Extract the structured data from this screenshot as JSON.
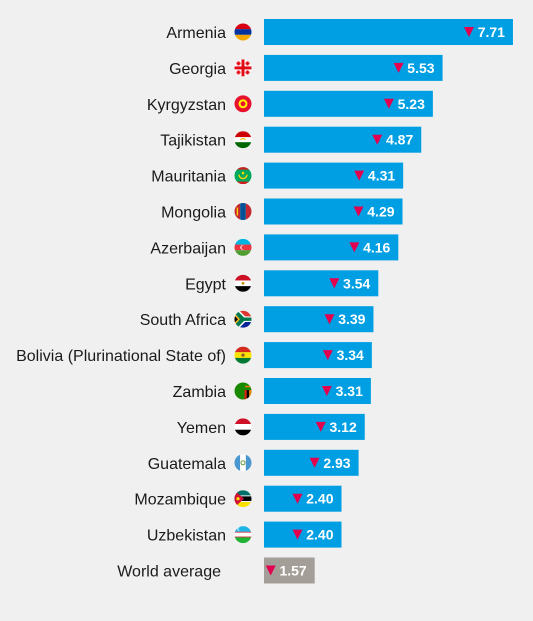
{
  "chart_data": {
    "type": "bar",
    "orientation": "horizontal",
    "title": "",
    "xlabel": "",
    "ylabel": "",
    "xlim": [
      0,
      8.3
    ],
    "grid": false,
    "legend": "none",
    "colors": {
      "bar": "#009fe3",
      "average_bar": "#a49e98",
      "down_marker": "#e2004f",
      "value_text": "#ffffff",
      "background": "#f0f0f0"
    },
    "categories": [
      "Armenia",
      "Georgia",
      "Kyrgyzstan",
      "Tajikistan",
      "Mauritania",
      "Mongolia",
      "Azerbaijan",
      "Egypt",
      "South Africa",
      "Bolivia (Plurinational State of)",
      "Zambia",
      "Yemen",
      "Guatemala",
      "Mozambique",
      "Uzbekistan",
      "World average"
    ],
    "values": [
      7.71,
      5.53,
      5.23,
      4.87,
      4.31,
      4.29,
      4.16,
      3.54,
      3.39,
      3.34,
      3.31,
      3.12,
      2.93,
      2.4,
      2.4,
      1.57
    ],
    "value_labels": [
      "7.71",
      "5.53",
      "5.23",
      "4.87",
      "4.31",
      "4.29",
      "4.16",
      "3.54",
      "3.39",
      "3.34",
      "3.31",
      "3.12",
      "2.93",
      "2.40",
      "2.40",
      "1.57"
    ],
    "markers": [
      "down",
      "down",
      "down",
      "down",
      "down",
      "down",
      "down",
      "down",
      "down",
      "down",
      "down",
      "down",
      "down",
      "down",
      "down",
      "down"
    ],
    "flags": [
      "armenia-flag",
      "georgia-flag",
      "kyrgyzstan-flag",
      "tajikistan-flag",
      "mauritania-flag",
      "mongolia-flag",
      "azerbaijan-flag",
      "egypt-flag",
      "south-africa-flag",
      "bolivia-flag",
      "zambia-flag",
      "yemen-flag",
      "guatemala-flag",
      "mozambique-flag",
      "uzbekistan-flag",
      null
    ],
    "highlight": "World average"
  }
}
